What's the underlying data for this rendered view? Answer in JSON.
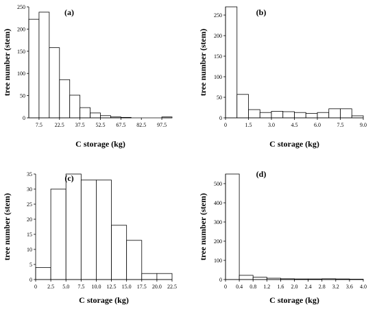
{
  "chart_data": [
    {
      "type": "bar",
      "panel_label": "(a)",
      "xlabel": "C storage (kg)",
      "ylabel": "tree number (stem)",
      "bin_edges": [
        0,
        7.5,
        15,
        22.5,
        30,
        37.5,
        45,
        52.5,
        60,
        67.5,
        75,
        82.5,
        90,
        97.5,
        105
      ],
      "values": [
        222,
        238,
        158,
        86,
        51,
        23,
        11,
        5,
        2,
        1,
        0,
        0,
        0,
        2
      ],
      "xlim": [
        0,
        105
      ],
      "ylim": [
        0,
        250
      ],
      "xticks": [
        7.5,
        22.5,
        37.5,
        52.5,
        67.5,
        82.5,
        97.5
      ],
      "xtick_labels": [
        "7.5",
        "22.5",
        "37.5",
        "52.5",
        "67.5",
        "82.5",
        "97.5"
      ],
      "yticks": [
        0,
        50,
        100,
        150,
        200,
        250
      ],
      "ytick_labels": [
        "0",
        "50",
        "100",
        "150",
        "200",
        "250"
      ],
      "grid": false
    },
    {
      "type": "bar",
      "panel_label": "(b)",
      "xlabel": "C storage (kg)",
      "ylabel": "tree number (stem)",
      "bin_edges": [
        0,
        0.75,
        1.5,
        2.25,
        3.0,
        3.75,
        4.5,
        5.25,
        6.0,
        6.75,
        7.5,
        8.25,
        9.0
      ],
      "values": [
        270,
        57,
        20,
        13,
        16,
        15,
        13,
        11,
        13,
        22,
        22,
        5
      ],
      "xlim": [
        0,
        9.0
      ],
      "ylim": [
        0,
        270
      ],
      "xticks": [
        0,
        1.5,
        3.0,
        4.5,
        6.0,
        7.5,
        9.0
      ],
      "xtick_labels": [
        "0",
        "1.5",
        "3.0",
        "4.5",
        "6.0",
        "7.5",
        "9.0"
      ],
      "yticks": [
        0,
        50,
        100,
        150,
        200,
        250
      ],
      "ytick_labels": [
        "0",
        "50",
        "100",
        "150",
        "200",
        "250"
      ],
      "grid": false
    },
    {
      "type": "bar",
      "panel_label": "(c)",
      "xlabel": "C storage (kg)",
      "ylabel": "tree number (stem)",
      "bin_edges": [
        0,
        2.5,
        5.0,
        7.5,
        10.0,
        12.5,
        15.0,
        17.5,
        20.0,
        22.5
      ],
      "values": [
        4,
        30,
        35,
        33,
        33,
        18,
        13,
        2,
        2
      ],
      "xlim": [
        0,
        22.5
      ],
      "ylim": [
        0,
        35
      ],
      "xticks": [
        0,
        2.5,
        5.0,
        7.5,
        10.0,
        12.5,
        15.0,
        17.5,
        20.0,
        22.5
      ],
      "xtick_labels": [
        "0",
        "2.5",
        "5.0",
        "7.5",
        "10.0",
        "12.5",
        "15.0",
        "17.5",
        "20.0",
        "22.5"
      ],
      "yticks": [
        0,
        5,
        10,
        15,
        20,
        25,
        30,
        35
      ],
      "ytick_labels": [
        "0",
        "5",
        "10",
        "15",
        "20",
        "25",
        "30",
        "35"
      ],
      "grid": false
    },
    {
      "type": "bar",
      "panel_label": "(d)",
      "xlabel": "C storage (kg)",
      "ylabel": "tree number (stem)",
      "bin_edges": [
        0,
        0.4,
        0.8,
        1.2,
        1.6,
        2.0,
        2.4,
        2.8,
        3.2,
        3.6,
        4.0
      ],
      "values": [
        550,
        22,
        12,
        7,
        4,
        3,
        3,
        4,
        3,
        2
      ],
      "xlim": [
        0,
        4.0
      ],
      "ylim": [
        0,
        550
      ],
      "xticks": [
        0,
        0.4,
        0.8,
        1.2,
        1.6,
        2.0,
        2.4,
        2.8,
        3.2,
        3.6,
        4.0
      ],
      "xtick_labels": [
        "0",
        "0.4",
        "0.8",
        "1.2",
        "1.6",
        "2.0",
        "2.4",
        "2.8",
        "3.2",
        "3.6",
        "4.0"
      ],
      "yticks": [
        0,
        100,
        200,
        300,
        400,
        500
      ],
      "ytick_labels": [
        "0",
        "100",
        "200",
        "300",
        "400",
        "500"
      ],
      "grid": false
    }
  ]
}
